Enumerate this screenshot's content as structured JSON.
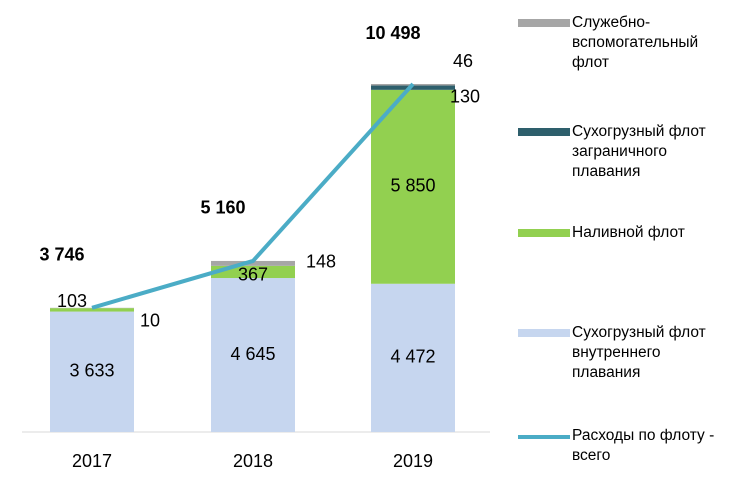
{
  "chart_data": {
    "type": "bar",
    "stacked": true,
    "categories": [
      "2017",
      "2018",
      "2019"
    ],
    "series": [
      {
        "name": "Сухогрузный флот внутреннего плавания",
        "color": "#c6d6ef",
        "values": [
          3633,
          4645,
          4472
        ],
        "value_labels": [
          "3 633",
          "4 645",
          "4 472"
        ]
      },
      {
        "name": "Наливной флот",
        "color": "#92d050",
        "values": [
          103,
          367,
          5850
        ],
        "value_labels": [
          "103",
          "367",
          "5 850"
        ]
      },
      {
        "name": "Сухогрузный флот заграничного плавания",
        "color": "#2e5f6c",
        "values": [
          0,
          0,
          130
        ]
      },
      {
        "name": "Служебно-вспомогательный флот",
        "color": "#a6a6a6",
        "values": [
          10,
          148,
          46
        ]
      }
    ],
    "line": {
      "name": "Расходы по флоту - всего",
      "color": "#4bacc6",
      "values": [
        3746,
        5160,
        10498
      ],
      "value_labels": [
        "3 746",
        "5 160",
        "10 498"
      ]
    }
  }
}
